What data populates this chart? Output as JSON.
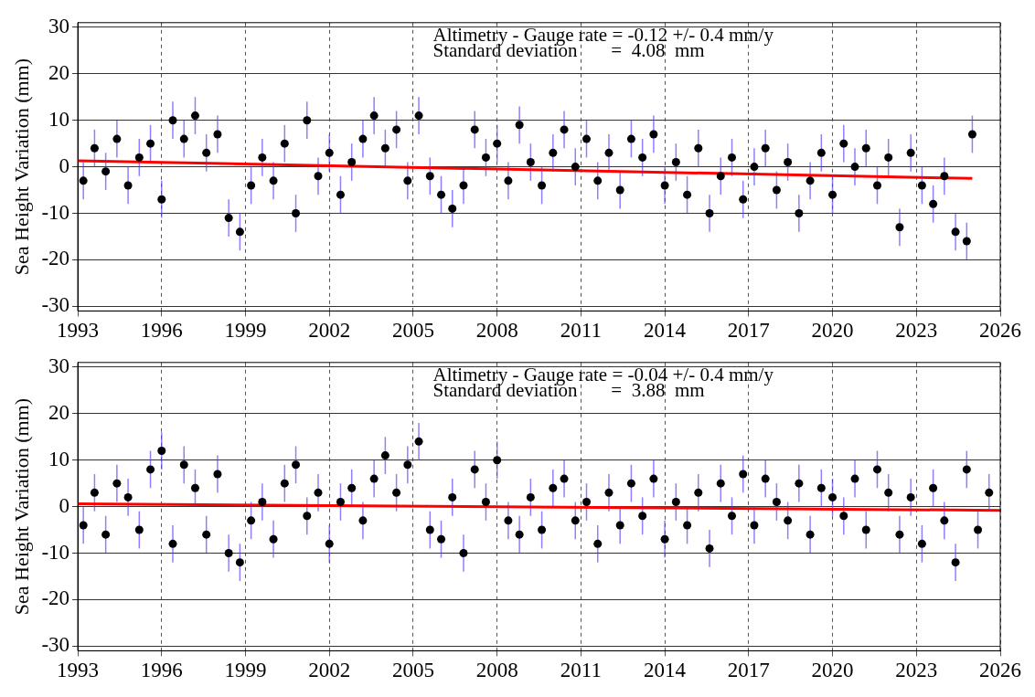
{
  "chart_data": [
    {
      "type": "scatter",
      "ylabel": "Sea Height Variation (mm)",
      "annotations": [
        "Altimetry - Gauge rate = -0.12 +/- 0.4 mm/y",
        "Standard deviation       =  4.08  mm"
      ],
      "xlim": [
        1993,
        2026
      ],
      "xticks": [
        1993,
        1996,
        1999,
        2002,
        2005,
        2008,
        2011,
        2014,
        2017,
        2020,
        2023,
        2026
      ],
      "ylim": [
        -31,
        31
      ],
      "yticks": [
        -30,
        -20,
        -10,
        0,
        10,
        20,
        30
      ],
      "grid": true,
      "legend": false,
      "series": [
        {
          "marker": "circle",
          "color": "#000000",
          "x": [
            1993.2,
            1993.6,
            1994.0,
            1994.4,
            1994.8,
            1995.2,
            1995.6,
            1996.0,
            1996.4,
            1996.8,
            1997.2,
            1997.6,
            1998.0,
            1998.4,
            1998.8,
            1999.2,
            1999.6,
            2000.0,
            2000.4,
            2000.8,
            2001.2,
            2001.6,
            2002.0,
            2002.4,
            2002.8,
            2003.2,
            2003.6,
            2004.0,
            2004.4,
            2004.8,
            2005.2,
            2005.6,
            2006.0,
            2006.4,
            2006.8,
            2007.2,
            2007.6,
            2008.0,
            2008.4,
            2008.8,
            2009.2,
            2009.6,
            2010.0,
            2010.4,
            2010.8,
            2011.2,
            2011.6,
            2012.0,
            2012.4,
            2012.8,
            2013.2,
            2013.6,
            2014.0,
            2014.4,
            2014.8,
            2015.2,
            2015.6,
            2016.0,
            2016.4,
            2016.8,
            2017.2,
            2017.6,
            2018.0,
            2018.4,
            2018.8,
            2019.2,
            2019.6,
            2020.0,
            2020.4,
            2020.8,
            2021.2,
            2021.6,
            2022.0,
            2022.4,
            2022.8,
            2023.2,
            2023.6,
            2024.0,
            2024.4,
            2024.8,
            2025.0
          ],
          "values": [
            -3,
            4,
            -1,
            6,
            -4,
            2,
            5,
            -7,
            10,
            6,
            11,
            3,
            7,
            -11,
            -14,
            -4,
            2,
            -3,
            5,
            -10,
            10,
            -2,
            3,
            -6,
            1,
            6,
            11,
            4,
            8,
            -3,
            11,
            -2,
            -6,
            -9,
            -4,
            8,
            2,
            5,
            -3,
            9,
            1,
            -4,
            3,
            8,
            0,
            6,
            -3,
            3,
            -5,
            6,
            2,
            7,
            -4,
            1,
            -6,
            4,
            -10,
            -2,
            2,
            -7,
            0,
            4,
            -5,
            1,
            -10,
            -3,
            3,
            -6,
            5,
            0,
            4,
            -4,
            2,
            -13,
            3,
            -4,
            -8,
            -2,
            -14,
            -16,
            7
          ],
          "errors": [
            4,
            4,
            4,
            4,
            4,
            4,
            4,
            4,
            4,
            4,
            4,
            4,
            4,
            4,
            4,
            4,
            4,
            4,
            4,
            4,
            4,
            4,
            4,
            4,
            4,
            4,
            4,
            4,
            4,
            4,
            4,
            4,
            4,
            4,
            4,
            4,
            4,
            4,
            4,
            4,
            4,
            4,
            4,
            4,
            4,
            4,
            4,
            4,
            4,
            4,
            4,
            4,
            4,
            4,
            4,
            4,
            4,
            4,
            4,
            4,
            4,
            4,
            4,
            4,
            4,
            4,
            4,
            4,
            4,
            4,
            4,
            4,
            4,
            4,
            4,
            4,
            4,
            4,
            4,
            4,
            4
          ]
        },
        {
          "type": "line",
          "marker": "none",
          "color": "#ff0000",
          "x": [
            1993,
            2025
          ],
          "values": [
            1.3,
            -2.5
          ]
        }
      ]
    },
    {
      "type": "scatter",
      "ylabel": "Sea Height Variation (mm)",
      "annotations": [
        "Altimetry - Gauge rate = -0.04 +/- 0.4 mm/y",
        "Standard deviation       =  3.88  mm"
      ],
      "xlim": [
        1993,
        2026
      ],
      "xticks": [
        1993,
        1996,
        1999,
        2002,
        2005,
        2008,
        2011,
        2014,
        2017,
        2020,
        2023,
        2026
      ],
      "ylim": [
        -31,
        31
      ],
      "yticks": [
        -30,
        -20,
        -10,
        0,
        10,
        20,
        30
      ],
      "grid": true,
      "legend": false,
      "series": [
        {
          "marker": "circle",
          "color": "#000000",
          "x": [
            1993.2,
            1993.6,
            1994.0,
            1994.4,
            1994.8,
            1995.2,
            1995.6,
            1996.0,
            1996.4,
            1996.8,
            1997.2,
            1997.6,
            1998.0,
            1998.4,
            1998.8,
            1999.2,
            1999.6,
            2000.0,
            2000.4,
            2000.8,
            2001.2,
            2001.6,
            2002.0,
            2002.4,
            2002.8,
            2003.2,
            2003.6,
            2004.0,
            2004.4,
            2004.8,
            2005.2,
            2005.6,
            2006.0,
            2006.4,
            2006.8,
            2007.2,
            2007.6,
            2008.0,
            2008.4,
            2008.8,
            2009.2,
            2009.6,
            2010.0,
            2010.4,
            2010.8,
            2011.2,
            2011.6,
            2012.0,
            2012.4,
            2012.8,
            2013.2,
            2013.6,
            2014.0,
            2014.4,
            2014.8,
            2015.2,
            2015.6,
            2016.0,
            2016.4,
            2016.8,
            2017.2,
            2017.6,
            2018.0,
            2018.4,
            2018.8,
            2019.2,
            2019.6,
            2020.0,
            2020.4,
            2020.8,
            2021.2,
            2021.6,
            2022.0,
            2022.4,
            2022.8,
            2023.2,
            2023.6,
            2024.0,
            2024.4,
            2024.8,
            2025.2,
            2025.6
          ],
          "values": [
            -4,
            3,
            -6,
            5,
            2,
            -5,
            8,
            12,
            -8,
            9,
            4,
            -6,
            7,
            -10,
            -12,
            -3,
            1,
            -7,
            5,
            9,
            -2,
            3,
            -8,
            1,
            4,
            -3,
            6,
            11,
            3,
            9,
            14,
            -5,
            -7,
            2,
            -10,
            8,
            1,
            10,
            -3,
            -6,
            2,
            -5,
            4,
            6,
            -3,
            1,
            -8,
            3,
            -4,
            5,
            -2,
            6,
            -7,
            1,
            -4,
            3,
            -9,
            5,
            -2,
            7,
            -4,
            6,
            1,
            -3,
            5,
            -6,
            4,
            2,
            -2,
            6,
            -5,
            8,
            3,
            -6,
            2,
            -8,
            4,
            -3,
            -12,
            8,
            -5,
            3
          ],
          "errors": [
            4,
            4,
            4,
            4,
            4,
            4,
            4,
            4,
            4,
            4,
            4,
            4,
            4,
            4,
            4,
            4,
            4,
            4,
            4,
            4,
            4,
            4,
            4,
            4,
            4,
            4,
            4,
            4,
            4,
            4,
            4,
            4,
            4,
            4,
            4,
            4,
            4,
            4,
            4,
            4,
            4,
            4,
            4,
            4,
            4,
            4,
            4,
            4,
            4,
            4,
            4,
            4,
            4,
            4,
            4,
            4,
            4,
            4,
            4,
            4,
            4,
            4,
            4,
            4,
            4,
            4,
            4,
            4,
            4,
            4,
            4,
            4,
            4,
            4,
            4,
            4,
            4,
            4,
            4,
            4,
            4,
            4
          ]
        },
        {
          "type": "line",
          "marker": "none",
          "color": "#ff0000",
          "x": [
            1993,
            2026
          ],
          "values": [
            0.6,
            -0.8
          ]
        }
      ]
    }
  ]
}
